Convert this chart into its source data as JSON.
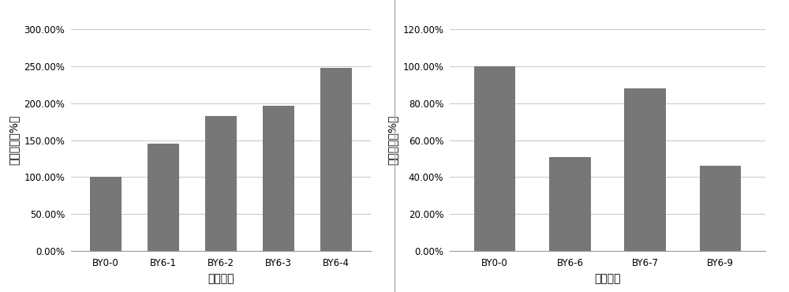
{
  "chart1": {
    "categories": [
      "BY0-0",
      "BY6-1",
      "BY6-2",
      "BY6-3",
      "BY6-4"
    ],
    "values": [
      100.0,
      145.0,
      183.0,
      197.0,
      248.0
    ],
    "ylim": [
      0,
      300
    ],
    "yticks": [
      0,
      50,
      100,
      150,
      200,
      250,
      300
    ],
    "ylabel": "相对活性（%）",
    "xlabel": "样品编号"
  },
  "chart2": {
    "categories": [
      "BY0-0",
      "BY6-6",
      "BY6-7",
      "BY6-9"
    ],
    "values": [
      100.0,
      51.0,
      88.0,
      46.0
    ],
    "ylim": [
      0,
      120
    ],
    "yticks": [
      0,
      20,
      40,
      60,
      80,
      100,
      120
    ],
    "ylabel": "相对活性（%）",
    "xlabel": "样品编号"
  },
  "bar_color": "#777777",
  "plot_bg_color": "#ffffff",
  "fig_bg_color": "#ffffff",
  "grid_color": "#cccccc",
  "divider_color": "#aaaaaa"
}
